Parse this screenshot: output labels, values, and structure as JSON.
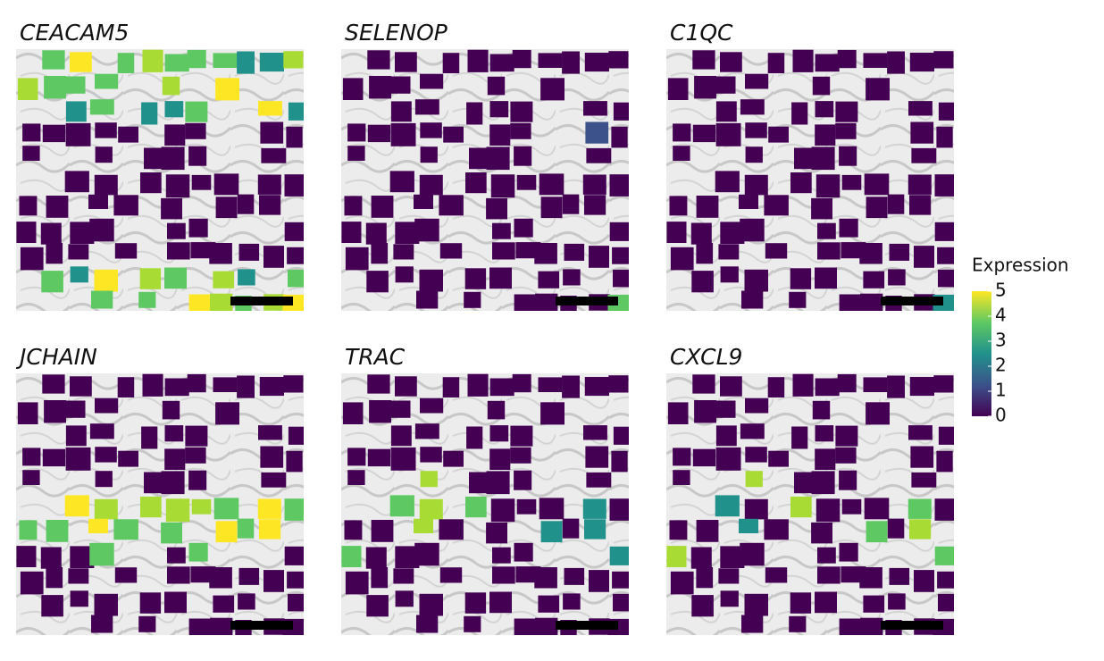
{
  "panels": [
    {
      "title": "CEACAM5"
    },
    {
      "title": "SELENOP"
    },
    {
      "title": "C1QC"
    },
    {
      "title": "JCHAIN"
    },
    {
      "title": "TRAC"
    },
    {
      "title": "CXCL9"
    }
  ],
  "legend": {
    "title": "Expression",
    "lim": [
      0,
      5
    ],
    "ticks": [
      0,
      1,
      2,
      3,
      4,
      5
    ]
  }
}
